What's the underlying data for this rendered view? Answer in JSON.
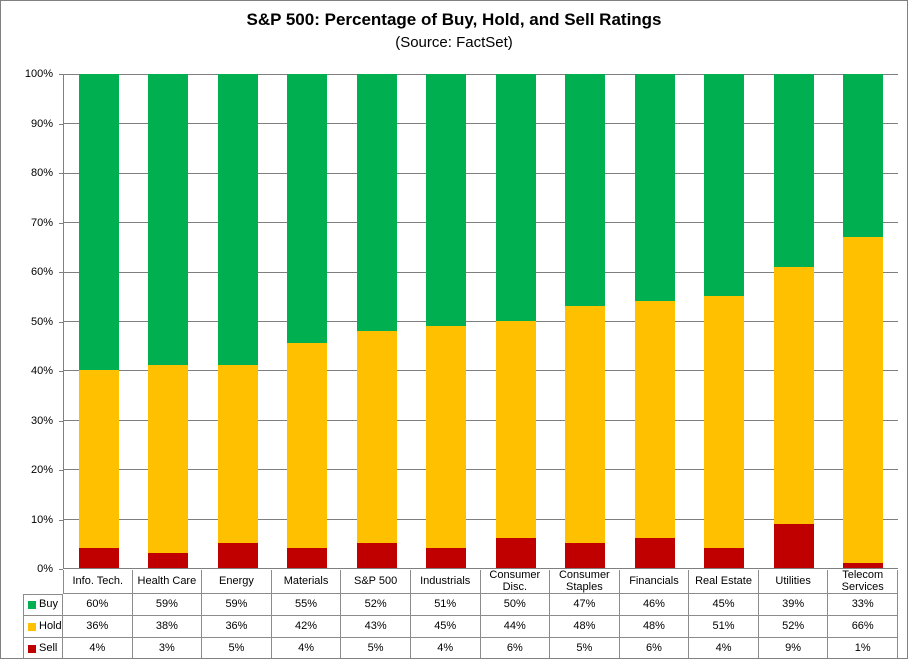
{
  "header": {
    "title": "S&P 500: Percentage of Buy, Hold, and Sell Ratings",
    "subtitle": "(Source: FactSet)"
  },
  "colors": {
    "buy": "#00B050",
    "hold": "#FFC000",
    "sell": "#C00000",
    "gridline": "#7f7f7f",
    "table_border": "#8c8c8c"
  },
  "chart_data": {
    "type": "bar",
    "stacked": true,
    "title": "S&P 500: Percentage of Buy, Hold, and Sell Ratings",
    "subtitle": "(Source: FactSet)",
    "categories": [
      "Info. Tech.",
      "Health Care",
      "Energy",
      "Materials",
      "S&P 500",
      "Industrials",
      "Consumer Disc.",
      "Consumer Staples",
      "Financials",
      "Real Estate",
      "Utilities",
      "Telecom Services"
    ],
    "series": [
      {
        "name": "Buy",
        "color": "#00B050",
        "values": [
          60,
          59,
          59,
          55,
          52,
          51,
          50,
          47,
          46,
          45,
          39,
          33
        ]
      },
      {
        "name": "Hold",
        "color": "#FFC000",
        "values": [
          36,
          38,
          36,
          42,
          43,
          45,
          44,
          48,
          48,
          51,
          52,
          66
        ]
      },
      {
        "name": "Sell",
        "color": "#C00000",
        "values": [
          4,
          3,
          5,
          4,
          5,
          4,
          6,
          5,
          6,
          4,
          9,
          1
        ]
      }
    ],
    "stack_order_bottom_to_top": [
      "Sell",
      "Hold",
      "Buy"
    ],
    "value_suffix": "%",
    "xlabel": "",
    "ylabel": "",
    "y_axis": {
      "min": 0,
      "max": 100,
      "step": 10,
      "tick_labels": [
        "0%",
        "10%",
        "20%",
        "30%",
        "40%",
        "50%",
        "60%",
        "70%",
        "80%",
        "90%",
        "100%"
      ],
      "grid": true
    },
    "legend_position": "data-table-left",
    "data_table_shown": true
  }
}
